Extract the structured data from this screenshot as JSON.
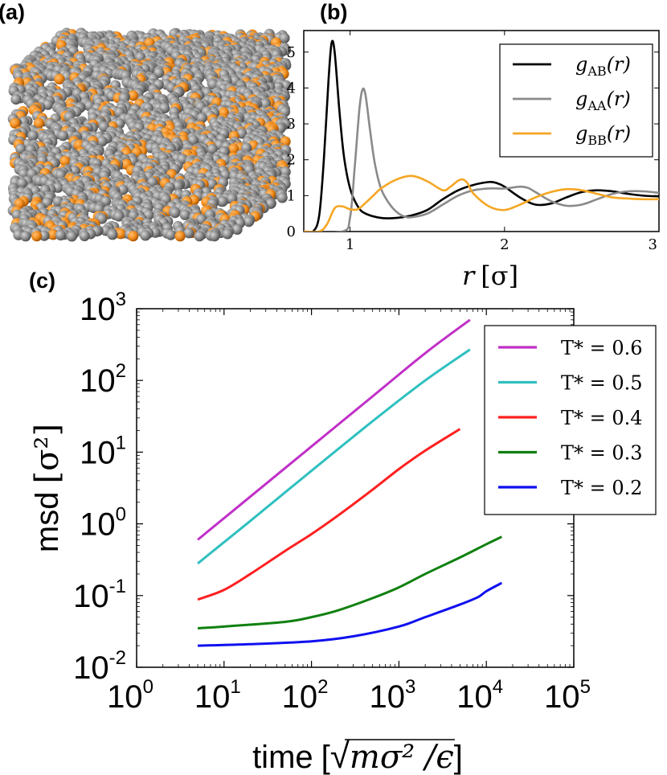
{
  "panels": {
    "a_label": "(a)",
    "b_label": "(b)",
    "c_label": "(c)"
  },
  "particle_box": {
    "description_colors": {
      "majority": "#8c8c8c",
      "minority": "#f08c1e"
    }
  },
  "chart_data": [
    {
      "id": "rdf",
      "type": "line",
      "xlabel_symbol": "r",
      "xlabel_unit": "[σ]",
      "xlim": [
        0.7,
        3.0
      ],
      "ylim": [
        0,
        5.6
      ],
      "xticks": [
        1,
        2,
        3
      ],
      "yticks": [
        0,
        1,
        2,
        3,
        4,
        5
      ],
      "legend_position": "top-right",
      "series": [
        {
          "name": "AB",
          "label_main": "g",
          "label_sub": "AB",
          "label_arg": "(r)",
          "color": "#000000",
          "x": [
            0.7,
            0.76,
            0.8,
            0.83,
            0.86,
            0.88,
            0.9,
            0.93,
            0.96,
            1.0,
            1.05,
            1.1,
            1.2,
            1.3,
            1.4,
            1.5,
            1.6,
            1.7,
            1.8,
            1.9,
            1.95,
            2.0,
            2.1,
            2.2,
            2.3,
            2.4,
            2.5,
            2.6,
            2.7,
            2.8,
            2.9,
            3.0
          ],
          "y": [
            0.0,
            0.0,
            0.45,
            2.0,
            4.2,
            5.25,
            5.0,
            3.4,
            2.1,
            1.2,
            0.7,
            0.5,
            0.38,
            0.38,
            0.45,
            0.6,
            0.9,
            1.15,
            1.3,
            1.38,
            1.35,
            1.25,
            0.95,
            0.75,
            0.78,
            0.95,
            1.1,
            1.15,
            1.12,
            1.05,
            1.0,
            0.98
          ]
        },
        {
          "name": "AA",
          "label_main": "g",
          "label_sub": "AA",
          "label_arg": "(r)",
          "color": "#8a8a8a",
          "x": [
            0.7,
            0.95,
            1.0,
            1.03,
            1.06,
            1.08,
            1.1,
            1.13,
            1.16,
            1.2,
            1.25,
            1.3,
            1.35,
            1.4,
            1.5,
            1.6,
            1.7,
            1.8,
            1.9,
            2.0,
            2.1,
            2.15,
            2.2,
            2.3,
            2.4,
            2.5,
            2.6,
            2.7,
            2.8,
            2.9,
            3.0
          ],
          "y": [
            0.0,
            0.0,
            0.4,
            1.8,
            3.4,
            3.95,
            3.8,
            2.8,
            1.9,
            1.2,
            0.8,
            0.55,
            0.42,
            0.4,
            0.5,
            0.75,
            1.0,
            1.15,
            1.2,
            1.2,
            1.25,
            1.22,
            1.1,
            0.85,
            0.72,
            0.75,
            0.9,
            1.05,
            1.12,
            1.12,
            1.08
          ]
        },
        {
          "name": "BB",
          "label_main": "g",
          "label_sub": "BB",
          "label_arg": "(r)",
          "color": "#f5a623",
          "x": [
            0.7,
            0.8,
            0.85,
            0.9,
            0.95,
            1.0,
            1.05,
            1.1,
            1.15,
            1.2,
            1.3,
            1.4,
            1.5,
            1.6,
            1.65,
            1.7,
            1.73,
            1.76,
            1.8,
            1.9,
            2.0,
            2.1,
            2.2,
            2.3,
            2.4,
            2.5,
            2.6,
            2.7,
            2.8,
            2.9,
            3.0
          ],
          "y": [
            0.0,
            0.0,
            0.2,
            0.65,
            0.7,
            0.62,
            0.62,
            0.8,
            1.0,
            1.2,
            1.45,
            1.55,
            1.4,
            1.15,
            1.25,
            1.42,
            1.45,
            1.35,
            1.05,
            0.7,
            0.6,
            0.75,
            0.95,
            1.1,
            1.18,
            1.15,
            1.05,
            0.95,
            0.92,
            0.9,
            0.9
          ]
        }
      ]
    },
    {
      "id": "msd",
      "type": "line",
      "scale": "log-log",
      "xlabel": "time",
      "xlabel_unit_prefix": "[",
      "xlabel_unit_expr": "mσ² /ϵ",
      "xlabel_unit_suffix": "]",
      "ylabel": "msd",
      "ylabel_unit": "[σ²]",
      "xlim_exp": [
        0,
        5
      ],
      "ylim_exp": [
        -2,
        3
      ],
      "xtick_exponents": [
        0,
        1,
        2,
        3,
        4,
        5
      ],
      "ytick_exponents": [
        -2,
        -1,
        0,
        1,
        2,
        3
      ],
      "tick_base": "10",
      "legend_position": "top-right",
      "series": [
        {
          "name": "T* = 0.6",
          "color": "#c030c8",
          "x": [
            5,
            20,
            100,
            500,
            2000,
            6500
          ],
          "y": [
            0.6,
            2.4,
            12,
            60,
            240,
            700
          ]
        },
        {
          "name": "T* = 0.5",
          "color": "#30c0c0",
          "x": [
            5,
            20,
            100,
            500,
            2000,
            6500
          ],
          "y": [
            0.28,
            1.1,
            5.5,
            27,
            100,
            270
          ]
        },
        {
          "name": "T* = 0.4",
          "color": "#ff2020",
          "x": [
            5,
            10,
            20,
            50,
            100,
            200,
            500,
            1000,
            2000,
            5000
          ],
          "y": [
            0.088,
            0.12,
            0.2,
            0.42,
            0.72,
            1.3,
            3.0,
            5.8,
            10.5,
            21
          ]
        },
        {
          "name": "T* = 0.3",
          "color": "#108010",
          "x": [
            5,
            10,
            50,
            100,
            200,
            500,
            1000,
            2000,
            5000,
            10000,
            15000
          ],
          "y": [
            0.035,
            0.037,
            0.043,
            0.05,
            0.062,
            0.092,
            0.13,
            0.2,
            0.34,
            0.52,
            0.66
          ]
        },
        {
          "name": "T* = 0.2",
          "color": "#1010f0",
          "x": [
            5,
            20,
            100,
            300,
            1000,
            2000,
            5000,
            8000,
            10000,
            15000
          ],
          "y": [
            0.02,
            0.021,
            0.023,
            0.027,
            0.037,
            0.05,
            0.075,
            0.095,
            0.115,
            0.15
          ]
        }
      ]
    }
  ]
}
